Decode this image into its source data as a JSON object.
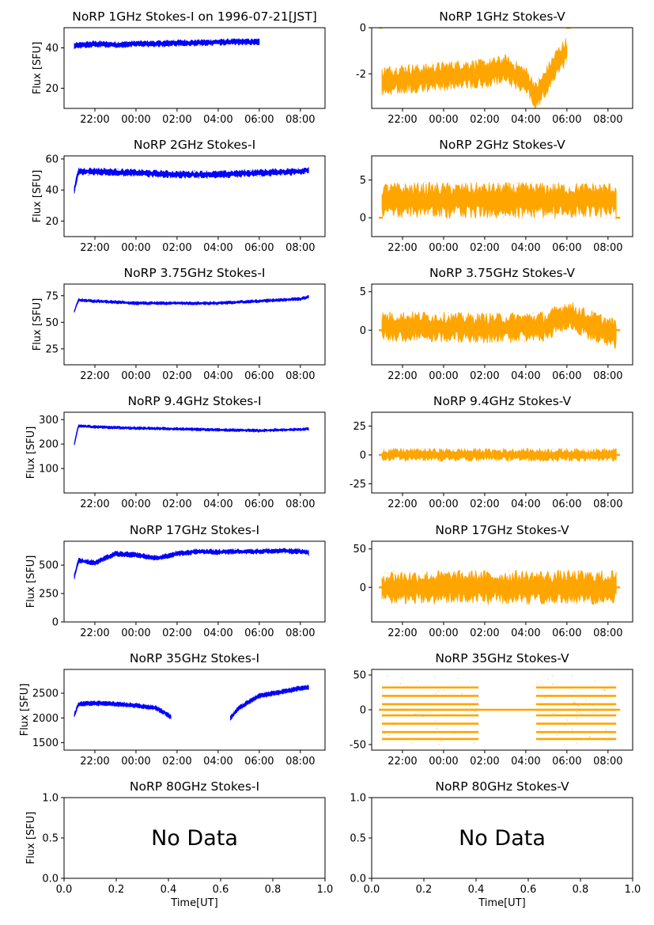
{
  "figure": {
    "xlabel": "Time[UT]",
    "ylabel": "Flux [SFU]",
    "no_data_text": "No Data",
    "time_ticks": [
      "22:00",
      "00:00",
      "02:00",
      "04:00",
      "06:00",
      "08:00"
    ],
    "colors": {
      "stokes_i": "#0000ff",
      "stokes_v": "#ffa500"
    }
  },
  "chart_data": [
    {
      "type": "scatter",
      "title": "NoRP 1GHz Stokes-I on 1996-07-21[JST]",
      "ylabel": "Flux [SFU]",
      "ylim": [
        10,
        50
      ],
      "yticks": [
        20,
        40
      ],
      "x_hours": [
        21.0,
        22.0,
        23.0,
        0.0,
        1.0,
        2.0,
        3.0,
        4.0,
        5.0,
        6.0
      ],
      "y": [
        41,
        42,
        41.5,
        42,
        42,
        42.5,
        42.5,
        42.8,
        43,
        43
      ],
      "spread": 2,
      "series_end_hours": [
        21.0,
        6.0
      ]
    },
    {
      "type": "scatter",
      "title": "NoRP 1GHz Stokes-V",
      "ylim": [
        -3.5,
        0
      ],
      "yticks": [
        -2,
        0
      ],
      "x_hours": [
        21.0,
        22.0,
        23.0,
        0.0,
        1.0,
        2.0,
        3.0,
        4.0,
        4.5,
        5.0,
        5.5,
        6.0
      ],
      "y": [
        -2.3,
        -2.2,
        -2.2,
        -2.1,
        -2.0,
        -2.0,
        -1.8,
        -2.3,
        -3.0,
        -2.3,
        -1.5,
        -1.0
      ],
      "spread": 0.8,
      "series_end_hours": [
        21.0,
        6.0
      ]
    },
    {
      "type": "scatter",
      "title": "NoRP 2GHz Stokes-I",
      "ylabel": "Flux [SFU]",
      "ylim": [
        10,
        62
      ],
      "yticks": [
        20,
        40,
        60
      ],
      "x_hours": [
        21.0,
        21.2,
        22.0,
        0.0,
        2.0,
        4.0,
        6.0,
        8.0,
        8.4
      ],
      "y": [
        40,
        52,
        52,
        51,
        50,
        50,
        51,
        52,
        53
      ],
      "spread": 3,
      "series_end_hours": [
        21.0,
        8.4
      ]
    },
    {
      "type": "scatter",
      "title": "NoRP 2GHz Stokes-V",
      "ylim": [
        -2.5,
        8.2
      ],
      "yticks": [
        0,
        5
      ],
      "x_hours": [
        21.0,
        23.0,
        1.0,
        3.0,
        5.0,
        7.0,
        8.4
      ],
      "y": [
        2.3,
        2.3,
        2.3,
        2.3,
        2.3,
        2.3,
        2.3
      ],
      "spread": 3,
      "series_end_hours": [
        21.0,
        8.4
      ]
    },
    {
      "type": "scatter",
      "title": "NoRP 3.75GHz Stokes-I",
      "ylabel": "Flux [SFU]",
      "ylim": [
        10,
        86
      ],
      "yticks": [
        25,
        50,
        75
      ],
      "x_hours": [
        21.0,
        21.2,
        22.0,
        0.0,
        2.0,
        4.0,
        6.0,
        8.0,
        8.4
      ],
      "y": [
        60,
        71,
        70,
        68,
        68,
        68,
        70,
        72,
        74
      ],
      "spread": 2,
      "series_end_hours": [
        21.0,
        8.4
      ]
    },
    {
      "type": "scatter",
      "title": "NoRP 3.75GHz Stokes-V",
      "ylim": [
        -4.5,
        6
      ],
      "yticks": [
        0,
        5
      ],
      "x_hours": [
        21.0,
        23.0,
        1.0,
        3.0,
        5.0,
        6.0,
        7.0,
        8.4
      ],
      "y": [
        0.5,
        0.5,
        0.3,
        0.3,
        0.5,
        2.0,
        0.8,
        -0.5
      ],
      "spread": 2.5,
      "series_end_hours": [
        21.0,
        8.4
      ]
    },
    {
      "type": "scatter",
      "title": "NoRP 9.4GHz Stokes-I",
      "ylabel": "Flux [SFU]",
      "ylim": [
        0,
        330
      ],
      "yticks": [
        100,
        200,
        300
      ],
      "x_hours": [
        21.0,
        21.2,
        22.0,
        0.0,
        2.0,
        4.0,
        6.0,
        8.0,
        8.4
      ],
      "y": [
        200,
        275,
        270,
        265,
        262,
        258,
        255,
        260,
        262
      ],
      "spread": 8,
      "series_end_hours": [
        21.0,
        8.4
      ]
    },
    {
      "type": "scatter",
      "title": "NoRP 9.4GHz Stokes-V",
      "ylim": [
        -33,
        37
      ],
      "yticks": [
        -25,
        0,
        25
      ],
      "x_hours": [
        21.0,
        23.0,
        1.0,
        3.0,
        5.0,
        7.0,
        8.4
      ],
      "y": [
        0,
        0,
        0,
        0,
        0,
        0,
        0
      ],
      "spread": 7,
      "series_end_hours": [
        21.0,
        8.4
      ]
    },
    {
      "type": "scatter",
      "title": "NoRP 17GHz Stokes-I",
      "ylabel": "Flux [SFU]",
      "ylim": [
        0,
        710
      ],
      "yticks": [
        0,
        250,
        500
      ],
      "x_hours": [
        21.0,
        21.2,
        22.0,
        23.0,
        0.0,
        1.0,
        2.0,
        3.0,
        4.0,
        5.0,
        6.0,
        7.0,
        8.0,
        8.4
      ],
      "y": [
        400,
        540,
        520,
        600,
        590,
        560,
        600,
        620,
        615,
        620,
        620,
        625,
        620,
        610
      ],
      "spread": 30,
      "series_end_hours": [
        21.0,
        8.4
      ]
    },
    {
      "type": "scatter",
      "title": "NoRP 17GHz Stokes-V",
      "ylim": [
        -45,
        60
      ],
      "yticks": [
        0,
        50
      ],
      "x_hours": [
        21.0,
        23.0,
        1.0,
        3.0,
        5.0,
        7.0,
        8.4
      ],
      "y": [
        0,
        0,
        0,
        0,
        0,
        0,
        0
      ],
      "spread": 28,
      "series_end_hours": [
        21.0,
        8.4
      ]
    },
    {
      "type": "scatter",
      "title": "NoRP 35GHz Stokes-I",
      "ylabel": "Flux [SFU]",
      "ylim": [
        1350,
        2980
      ],
      "yticks": [
        1500,
        2000,
        2500
      ],
      "segments": [
        {
          "x_hours": [
            21.0,
            21.2,
            22.0,
            23.0,
            0.0,
            1.0,
            1.7
          ],
          "y": [
            2050,
            2280,
            2300,
            2280,
            2250,
            2200,
            2020
          ]
        },
        {
          "x_hours": [
            4.6,
            5.0,
            6.0,
            7.0,
            8.0,
            8.4
          ],
          "y": [
            2000,
            2200,
            2450,
            2520,
            2600,
            2620
          ]
        }
      ],
      "spread": 60,
      "series_end_hours": [
        21.0,
        8.4
      ]
    },
    {
      "type": "scatter",
      "title": "NoRP 35GHz Stokes-V",
      "ylim": [
        -58,
        58
      ],
      "yticks": [
        -50,
        0,
        50
      ],
      "levels": [
        32,
        20,
        8,
        0,
        -8,
        -20,
        -32,
        -42
      ],
      "level_segments_hours": [
        [
          21.0,
          1.7
        ],
        [
          4.5,
          8.4
        ]
      ],
      "baseline_hours": [
        21.0,
        8.4
      ],
      "series_end_hours": [
        21.0,
        8.4
      ]
    },
    {
      "type": "scatter",
      "title": "NoRP 80GHz Stokes-I",
      "ylabel": "Flux [SFU]",
      "no_data": true,
      "xlim": [
        0,
        1
      ],
      "ylim": [
        0,
        1
      ],
      "xticks": [
        "0.0",
        "0.2",
        "0.4",
        "0.6",
        "0.8",
        "1.0"
      ],
      "yticks": [
        "0.0",
        "0.5",
        "1.0"
      ],
      "xlabel": "Time[UT]"
    },
    {
      "type": "scatter",
      "title": "NoRP 80GHz Stokes-V",
      "no_data": true,
      "xlim": [
        0,
        1
      ],
      "ylim": [
        0,
        1
      ],
      "xticks": [
        "0.0",
        "0.2",
        "0.4",
        "0.6",
        "0.8",
        "1.0"
      ],
      "yticks": [
        "0.0",
        "0.5",
        "1.0"
      ],
      "xlabel": "Time[UT]"
    }
  ]
}
